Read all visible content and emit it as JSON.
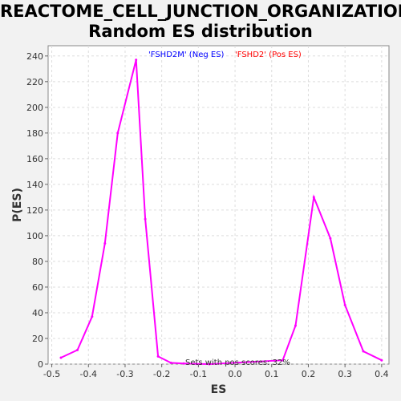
{
  "chart_data": {
    "type": "line",
    "title_line1": "REACTOME_CELL_JUNCTION_ORGANIZATION:",
    "title_line2": "Random ES distribution",
    "xlabel": "ES",
    "ylabel": "P(ES)",
    "xlim": [
      -0.51,
      0.42
    ],
    "ylim": [
      0,
      248
    ],
    "xticks": [
      -0.5,
      -0.4,
      -0.3,
      -0.2,
      -0.1,
      0.0,
      0.1,
      0.2,
      0.3,
      0.4
    ],
    "xtick_labels": [
      "-0.5",
      "-0.4",
      "-0.3",
      "-0.2",
      "-0.1",
      "0.0",
      "0.1",
      "0.2",
      "0.3",
      "0.4"
    ],
    "yticks": [
      0,
      20,
      40,
      60,
      80,
      100,
      120,
      140,
      160,
      180,
      200,
      220,
      240
    ],
    "grid": true,
    "line_color": "#ff00ff",
    "series": [
      {
        "x": [
          -0.475,
          -0.43,
          -0.39,
          -0.355,
          -0.32,
          -0.27,
          -0.245,
          -0.21,
          -0.175,
          -0.14,
          -0.105,
          -0.07,
          0.13,
          0.165,
          0.215,
          0.26,
          0.3,
          0.35,
          0.4
        ],
        "values": [
          5,
          11,
          37,
          94,
          180,
          237,
          113,
          6,
          1,
          0.5,
          0.2,
          0,
          3,
          30,
          130,
          98,
          46,
          10,
          3
        ]
      }
    ],
    "legend": [
      {
        "label": "'FSHD2M' (Neg ES)",
        "color": "#0000ff"
      },
      {
        "label": "'FSHD2' (Pos ES)",
        "color": "#ff0000"
      }
    ],
    "annotation": "Sets with pos scores: 32%"
  }
}
